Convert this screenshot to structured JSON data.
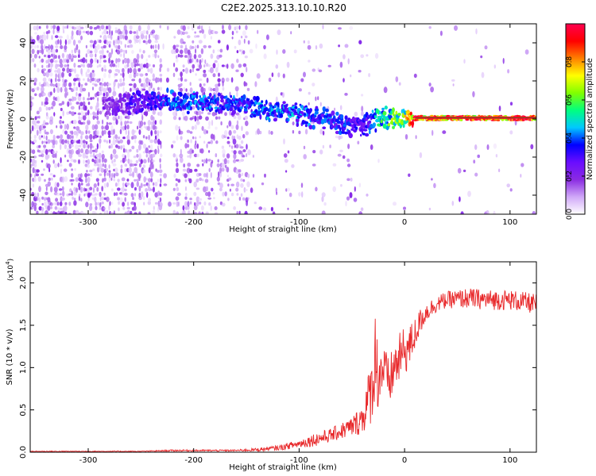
{
  "title": "C2E2.2025.313.10.10.R20",
  "chart_data": [
    {
      "type": "heatmap",
      "name": "spectrogram",
      "xlabel": "Height of straight line (km)",
      "ylabel": "Frequency (Hz)",
      "xlim": [
        -355,
        125
      ],
      "ylim": [
        -50,
        50
      ],
      "xticks": [
        -300,
        -200,
        -100,
        0,
        100
      ],
      "xtick_labels": [
        "-300",
        "-200",
        "-100",
        "0",
        "100"
      ],
      "yticks": [
        -40,
        -20,
        0,
        20,
        40
      ],
      "ytick_labels": [
        "-40",
        "-20",
        "0",
        "20",
        "40"
      ],
      "colorbar": {
        "label": "Normalized spectral amplitude",
        "range": [
          0,
          1
        ],
        "ticks": [
          0.0,
          0.2,
          0.4,
          0.6,
          0.8
        ],
        "tick_labels": [
          "0.0",
          "0.2",
          "0.4",
          "0.6",
          "0.8"
        ],
        "colormap": [
          "#ffffff",
          "#d0a8f8",
          "#8a2be2",
          "#6a0dff",
          "#0000ff",
          "#00c8ff",
          "#00ff80",
          "#80ff00",
          "#ffff00",
          "#ff8000",
          "#ff0000",
          "#ff0050"
        ]
      },
      "ridge_points": [
        {
          "x": -280,
          "f": 7,
          "amp": 0.22
        },
        {
          "x": -260,
          "f": 8,
          "amp": 0.3
        },
        {
          "x": -240,
          "f": 9,
          "amp": 0.35
        },
        {
          "x": -225,
          "f": 10,
          "amp": 0.4
        },
        {
          "x": -210,
          "f": 9,
          "amp": 0.45
        },
        {
          "x": -190,
          "f": 9,
          "amp": 0.42
        },
        {
          "x": -170,
          "f": 8,
          "amp": 0.4
        },
        {
          "x": -150,
          "f": 7,
          "amp": 0.42
        },
        {
          "x": -130,
          "f": 5,
          "amp": 0.45
        },
        {
          "x": -110,
          "f": 3,
          "amp": 0.45
        },
        {
          "x": -90,
          "f": 1,
          "amp": 0.42
        },
        {
          "x": -70,
          "f": -1,
          "amp": 0.4
        },
        {
          "x": -55,
          "f": -3,
          "amp": 0.38
        },
        {
          "x": -40,
          "f": -4,
          "amp": 0.32
        },
        {
          "x": -30,
          "f": -1,
          "amp": 0.45
        },
        {
          "x": -20,
          "f": 1,
          "amp": 0.6
        },
        {
          "x": -10,
          "f": 0,
          "amp": 0.65
        },
        {
          "x": 0,
          "f": 1,
          "amp": 0.7
        },
        {
          "x": 10,
          "f": 0.5,
          "amp": 0.95
        },
        {
          "x": 60,
          "f": 0.5,
          "amp": 0.98
        },
        {
          "x": 125,
          "f": 0.5,
          "amp": 0.97
        }
      ]
    },
    {
      "type": "line",
      "name": "snr",
      "xlabel": "Height of straight line (km)",
      "ylabel": "SNR (10 * v/v)",
      "y_scale_label": "(x10",
      "y_scale_exponent": "4",
      "y_scale_suffix": ")",
      "xlim": [
        -355,
        125
      ],
      "ylim": [
        0,
        2.25
      ],
      "xticks": [
        -300,
        -200,
        -100,
        0,
        100
      ],
      "xtick_labels": [
        "-300",
        "-200",
        "-100",
        "0",
        "100"
      ],
      "yticks": [
        0.0,
        0.5,
        1.0,
        1.5,
        2.0
      ],
      "ytick_labels": [
        "0.0",
        "0.5",
        "1.0",
        "1.5",
        "2.0"
      ],
      "series": [
        {
          "name": "SNR",
          "color": "#e8282a",
          "x": [
            -355,
            -300,
            -250,
            -220,
            -200,
            -180,
            -160,
            -140,
            -120,
            -100,
            -85,
            -70,
            -60,
            -50,
            -45,
            -40,
            -35,
            -30,
            -28,
            -25,
            -20,
            -15,
            -10,
            -5,
            0,
            5,
            10,
            15,
            20,
            30,
            40,
            60,
            80,
            100,
            125
          ],
          "y": [
            0.01,
            0.01,
            0.01,
            0.02,
            0.02,
            0.02,
            0.02,
            0.03,
            0.05,
            0.1,
            0.15,
            0.2,
            0.25,
            0.3,
            0.35,
            0.4,
            0.6,
            0.8,
            1.2,
            0.9,
            1.0,
            0.8,
            1.0,
            1.1,
            1.2,
            1.25,
            1.4,
            1.55,
            1.65,
            1.75,
            1.8,
            1.82,
            1.8,
            1.8,
            1.75
          ],
          "noise": [
            0.005,
            0.005,
            0.005,
            0.01,
            0.01,
            0.01,
            0.01,
            0.02,
            0.03,
            0.05,
            0.08,
            0.08,
            0.1,
            0.12,
            0.15,
            0.2,
            0.3,
            0.45,
            0.5,
            0.45,
            0.3,
            0.3,
            0.3,
            0.3,
            0.3,
            0.25,
            0.2,
            0.15,
            0.12,
            0.1,
            0.1,
            0.12,
            0.12,
            0.12,
            0.12
          ]
        }
      ]
    }
  ]
}
